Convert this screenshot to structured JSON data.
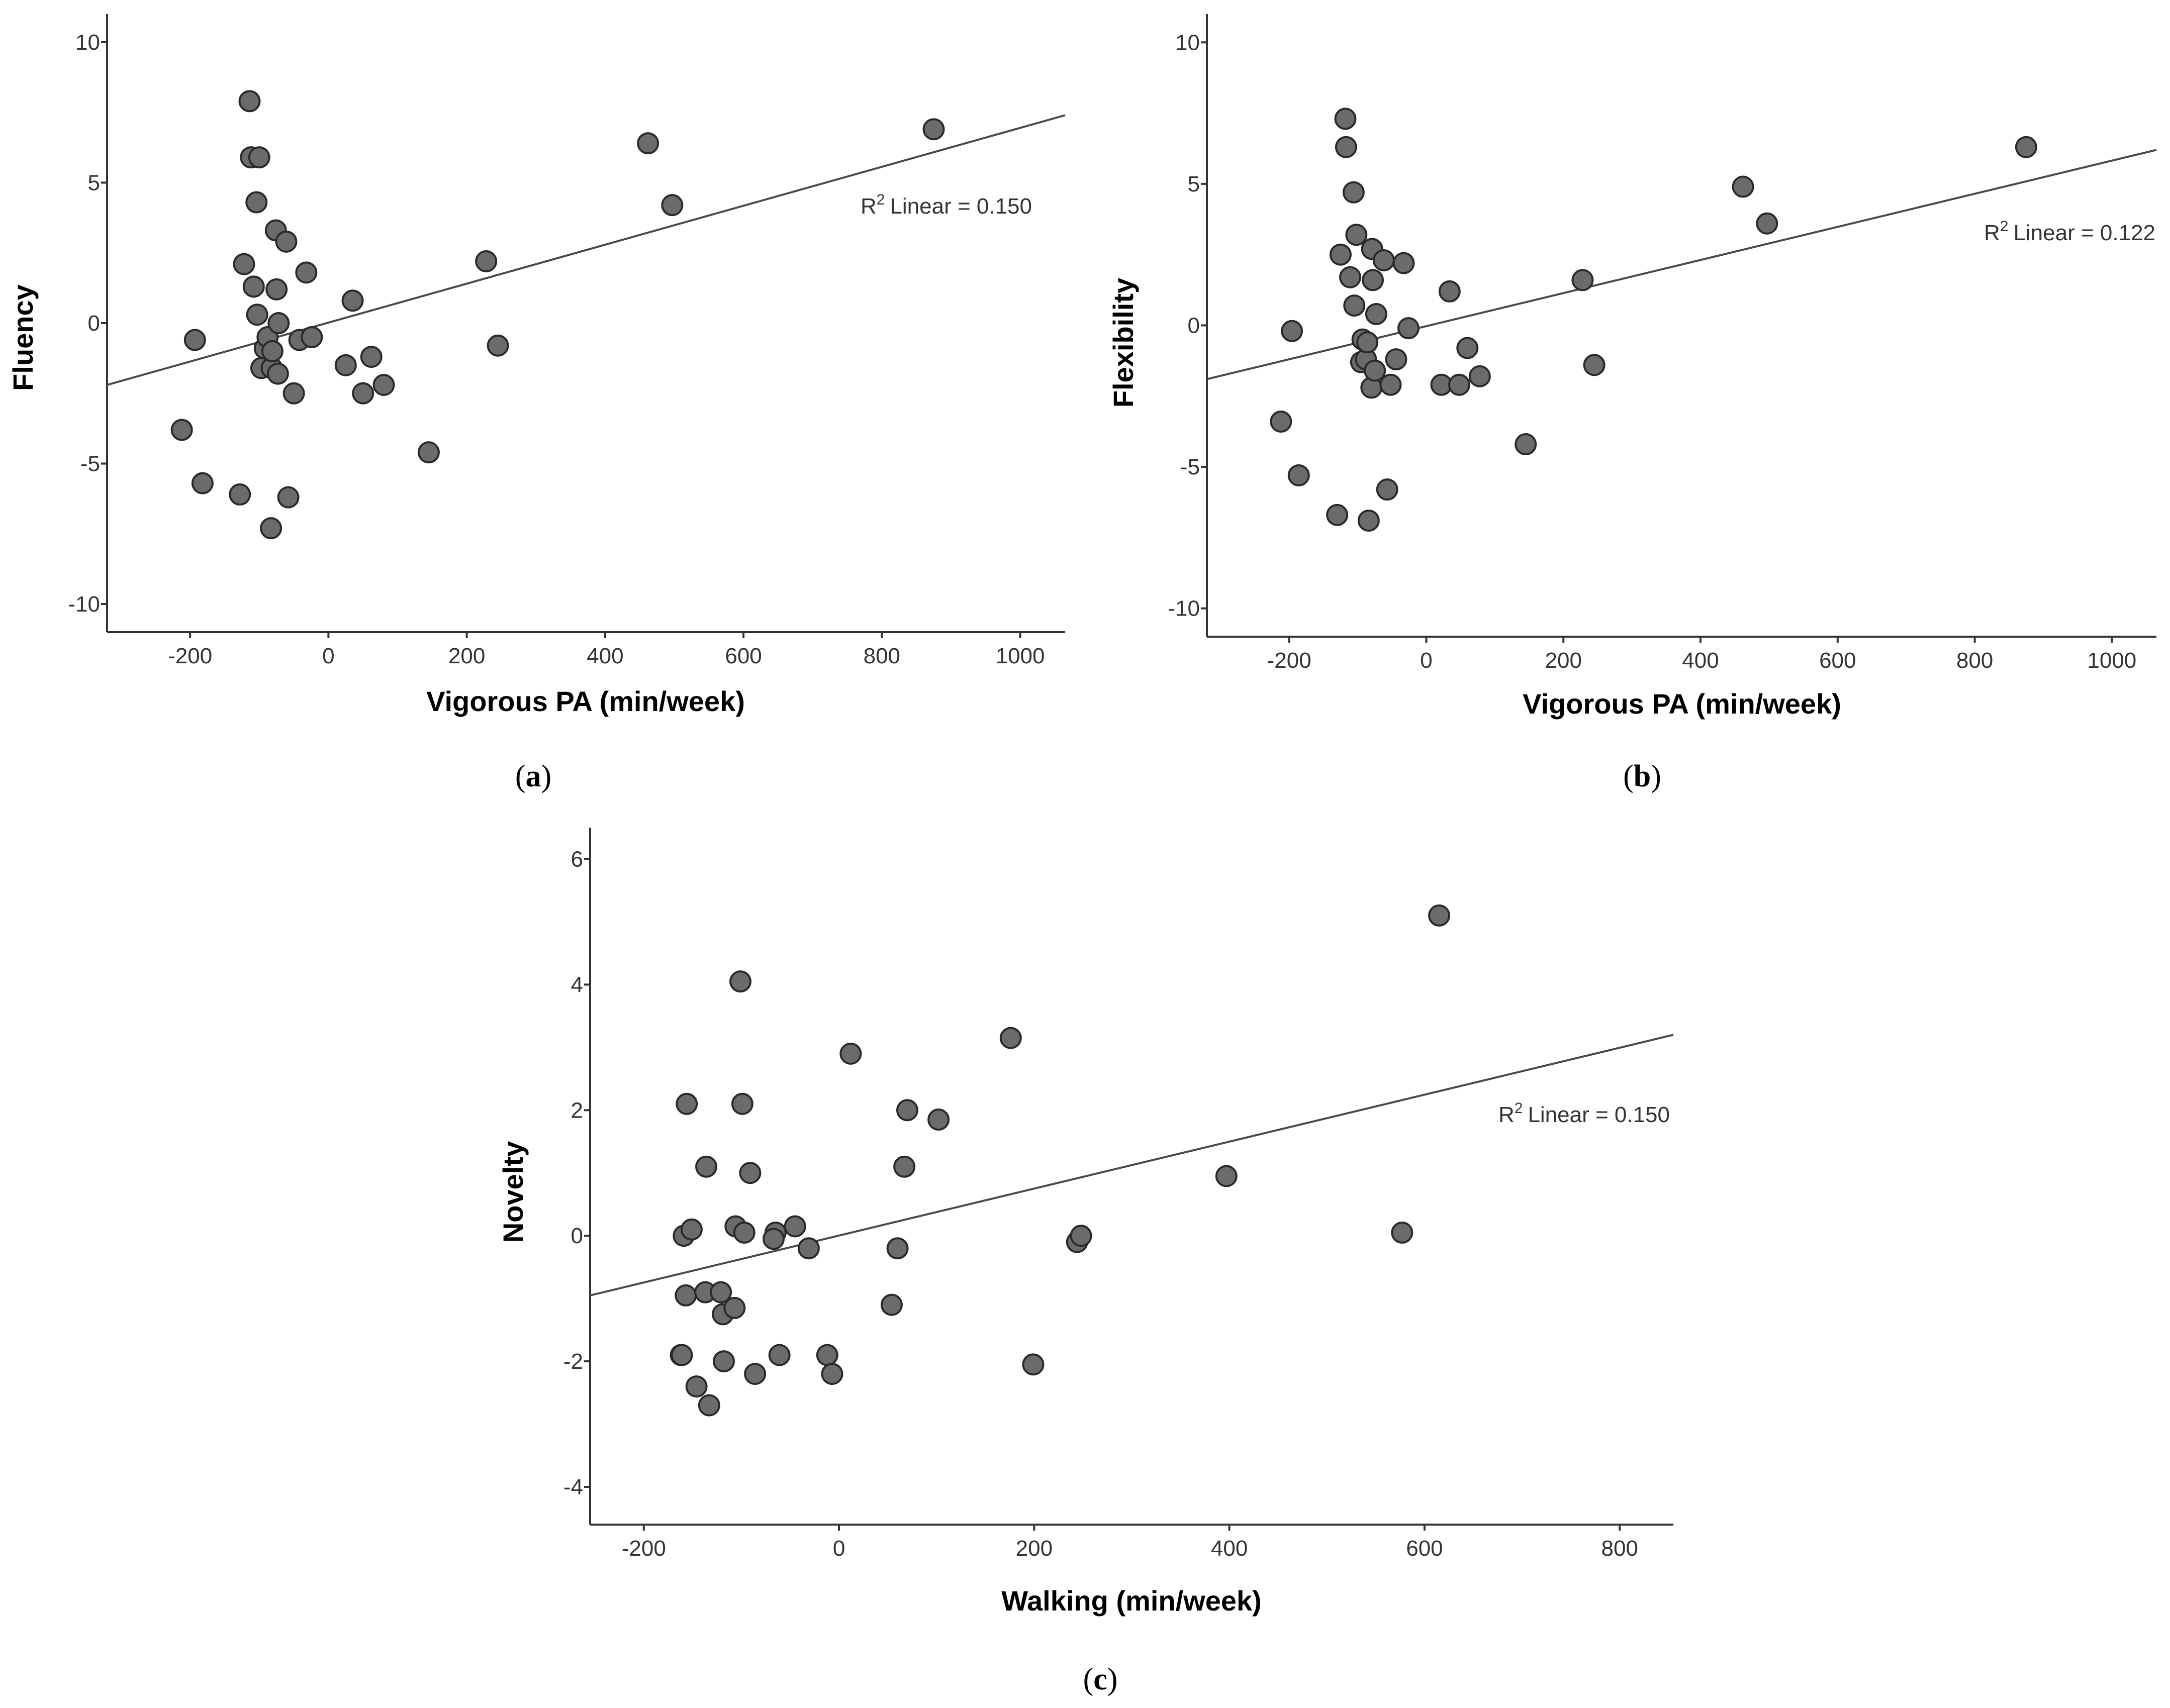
{
  "figure_label": "Scatter plots of creativity scores against physical activity",
  "chart_data": [
    {
      "id": "a",
      "type": "scatter",
      "caption": "a",
      "xlabel": "Vigorous PA (min/week)",
      "ylabel": "Fluency",
      "xlim": [
        -320,
        1065
      ],
      "ylim": [
        -11,
        11
      ],
      "xticks": [
        -200,
        0,
        200,
        400,
        600,
        800,
        1000
      ],
      "yticks": [
        -10,
        -5,
        0,
        5,
        10
      ],
      "fit_label": "Linear = 0.150",
      "fit_label_prefix": "R",
      "fit_label_sup": "2",
      "fit_line": {
        "x": [
          -320,
          1065
        ],
        "y": [
          -2.2,
          7.4
        ]
      },
      "points": [
        {
          "x": -212,
          "y": -3.8
        },
        {
          "x": -193,
          "y": -0.6
        },
        {
          "x": -182,
          "y": -5.7
        },
        {
          "x": -128,
          "y": -6.1
        },
        {
          "x": -122,
          "y": 2.1
        },
        {
          "x": -114,
          "y": 7.9
        },
        {
          "x": -112,
          "y": 5.9
        },
        {
          "x": -108,
          "y": 1.3
        },
        {
          "x": -104,
          "y": 4.3
        },
        {
          "x": -103,
          "y": 0.3
        },
        {
          "x": -100,
          "y": 5.9
        },
        {
          "x": -97,
          "y": -1.6
        },
        {
          "x": -92,
          "y": -0.9
        },
        {
          "x": -88,
          "y": -0.5
        },
        {
          "x": -83,
          "y": -7.3
        },
        {
          "x": -82,
          "y": -1.6
        },
        {
          "x": -81,
          "y": -1.0
        },
        {
          "x": -76,
          "y": 3.3
        },
        {
          "x": -75,
          "y": 1.2
        },
        {
          "x": -73,
          "y": -1.8
        },
        {
          "x": -72,
          "y": 0.0
        },
        {
          "x": -61,
          "y": 2.9
        },
        {
          "x": -58,
          "y": -6.2
        },
        {
          "x": -50,
          "y": -2.5
        },
        {
          "x": -42,
          "y": -0.6
        },
        {
          "x": -32,
          "y": 1.8
        },
        {
          "x": -24,
          "y": -0.5
        },
        {
          "x": 25,
          "y": -1.5
        },
        {
          "x": 35,
          "y": 0.8
        },
        {
          "x": 50,
          "y": -2.5
        },
        {
          "x": 62,
          "y": -1.2
        },
        {
          "x": 80,
          "y": -2.2
        },
        {
          "x": 145,
          "y": -4.6
        },
        {
          "x": 228,
          "y": 2.2
        },
        {
          "x": 245,
          "y": -0.8
        },
        {
          "x": 462,
          "y": 6.4
        },
        {
          "x": 497,
          "y": 4.2
        },
        {
          "x": 875,
          "y": 6.9
        }
      ]
    },
    {
      "id": "b",
      "type": "scatter",
      "caption": "b",
      "xlabel": "Vigorous PA (min/week)",
      "ylabel": "Flexibility",
      "xlim": [
        -320,
        1065
      ],
      "ylim": [
        -11,
        11
      ],
      "xticks": [
        -200,
        0,
        200,
        400,
        600,
        800,
        1000
      ],
      "yticks": [
        -10,
        -5,
        0,
        5,
        10
      ],
      "fit_label": "Linear = 0.122",
      "fit_label_prefix": "R",
      "fit_label_sup": "2",
      "fit_line": {
        "x": [
          -320,
          1065
        ],
        "y": [
          -1.9,
          6.2
        ]
      },
      "points": [
        {
          "x": -212,
          "y": -3.4
        },
        {
          "x": -196,
          "y": -0.2
        },
        {
          "x": -186,
          "y": -5.3
        },
        {
          "x": -130,
          "y": -6.7
        },
        {
          "x": -125,
          "y": 2.5
        },
        {
          "x": -118,
          "y": 7.3
        },
        {
          "x": -117,
          "y": 6.3
        },
        {
          "x": -111,
          "y": 1.7
        },
        {
          "x": -106,
          "y": 4.7
        },
        {
          "x": -105,
          "y": 0.7
        },
        {
          "x": -102,
          "y": 3.2
        },
        {
          "x": -95,
          "y": -1.3
        },
        {
          "x": -93,
          "y": -0.5
        },
        {
          "x": -88,
          "y": -1.2
        },
        {
          "x": -86,
          "y": -0.6
        },
        {
          "x": -84,
          "y": -6.9
        },
        {
          "x": -80,
          "y": -2.2
        },
        {
          "x": -79,
          "y": 2.7
        },
        {
          "x": -78,
          "y": 1.6
        },
        {
          "x": -75,
          "y": -1.6
        },
        {
          "x": -73,
          "y": 0.4
        },
        {
          "x": -62,
          "y": 2.3
        },
        {
          "x": -57,
          "y": -5.8
        },
        {
          "x": -52,
          "y": -2.1
        },
        {
          "x": -44,
          "y": -1.2
        },
        {
          "x": -33,
          "y": 2.2
        },
        {
          "x": -26,
          "y": -0.1
        },
        {
          "x": 22,
          "y": -2.1
        },
        {
          "x": 34,
          "y": 1.2
        },
        {
          "x": 48,
          "y": -2.1
        },
        {
          "x": 60,
          "y": -0.8
        },
        {
          "x": 78,
          "y": -1.8
        },
        {
          "x": 145,
          "y": -4.2
        },
        {
          "x": 228,
          "y": 1.6
        },
        {
          "x": 245,
          "y": -1.4
        },
        {
          "x": 462,
          "y": 4.9
        },
        {
          "x": 497,
          "y": 3.6
        },
        {
          "x": 875,
          "y": 6.3
        }
      ]
    },
    {
      "id": "c",
      "type": "scatter",
      "caption": "c",
      "xlabel": "Walking (min/week)",
      "ylabel": "Novelty",
      "xlim": [
        -255,
        855
      ],
      "ylim": [
        -4.6,
        6.5
      ],
      "xticks": [
        -200,
        0,
        200,
        400,
        600,
        800
      ],
      "yticks": [
        -4,
        -2,
        0,
        2,
        4,
        6
      ],
      "fit_label": "Linear = 0.150",
      "fit_label_prefix": "R",
      "fit_label_sup": "2",
      "fit_line": {
        "x": [
          -255,
          855
        ],
        "y": [
          -0.95,
          3.2
        ]
      },
      "points": [
        {
          "x": -162,
          "y": -1.9
        },
        {
          "x": -161,
          "y": -1.9
        },
        {
          "x": -159,
          "y": 0.0
        },
        {
          "x": -157,
          "y": -0.95
        },
        {
          "x": -156,
          "y": 2.1
        },
        {
          "x": -151,
          "y": 0.1
        },
        {
          "x": -146,
          "y": -2.4
        },
        {
          "x": -137,
          "y": -0.9
        },
        {
          "x": -136,
          "y": 1.1
        },
        {
          "x": -133,
          "y": -2.7
        },
        {
          "x": -121,
          "y": -0.9
        },
        {
          "x": -119,
          "y": -1.25
        },
        {
          "x": -118,
          "y": -2.0
        },
        {
          "x": -107,
          "y": -1.15
        },
        {
          "x": -106,
          "y": 0.15
        },
        {
          "x": -101,
          "y": 4.05
        },
        {
          "x": -99,
          "y": 2.1
        },
        {
          "x": -97,
          "y": 0.05
        },
        {
          "x": -91,
          "y": 1.0
        },
        {
          "x": -86,
          "y": -2.2
        },
        {
          "x": -65,
          "y": 0.05
        },
        {
          "x": -67,
          "y": -0.05
        },
        {
          "x": -61,
          "y": -1.9
        },
        {
          "x": -45,
          "y": 0.15
        },
        {
          "x": -31,
          "y": -0.2
        },
        {
          "x": -12,
          "y": -1.9
        },
        {
          "x": -7,
          "y": -2.2
        },
        {
          "x": 12,
          "y": 2.9
        },
        {
          "x": 54,
          "y": -1.1
        },
        {
          "x": 60,
          "y": -0.2
        },
        {
          "x": 67,
          "y": 1.1
        },
        {
          "x": 70,
          "y": 2.0
        },
        {
          "x": 102,
          "y": 1.85
        },
        {
          "x": 176,
          "y": 3.15
        },
        {
          "x": 199,
          "y": -2.05
        },
        {
          "x": 244,
          "y": -0.1
        },
        {
          "x": 248,
          "y": 0.0
        },
        {
          "x": 397,
          "y": 0.95
        },
        {
          "x": 577,
          "y": 0.05
        },
        {
          "x": 615,
          "y": 5.1
        }
      ]
    }
  ]
}
